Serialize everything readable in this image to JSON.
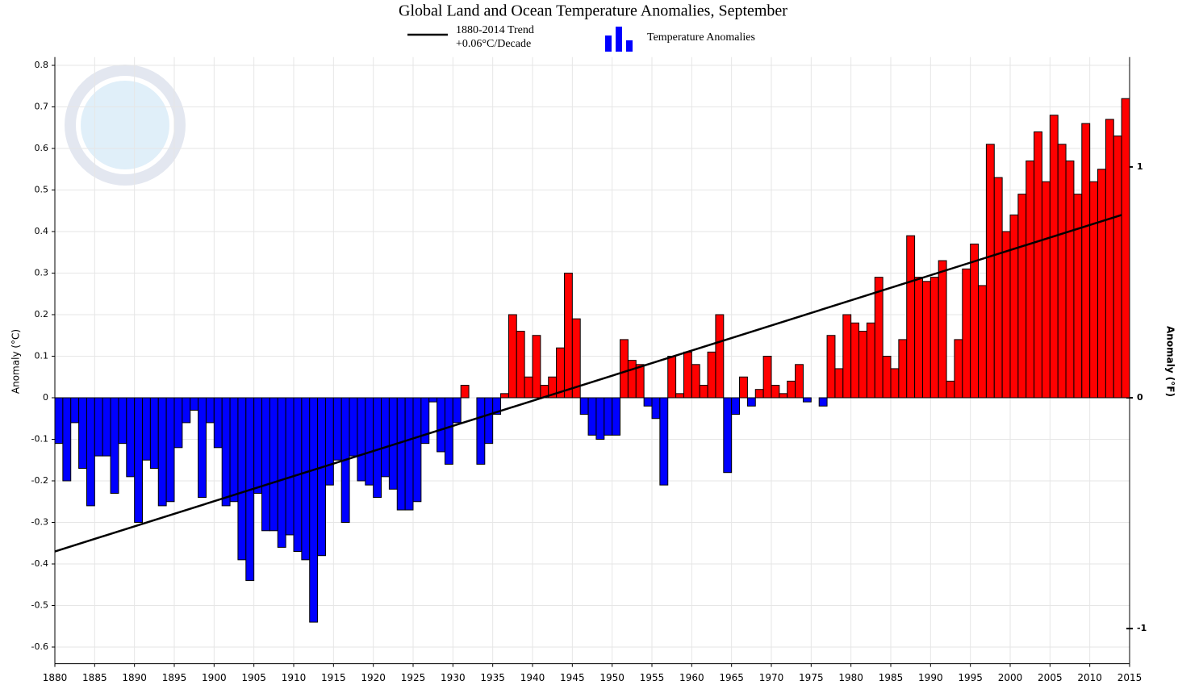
{
  "chart_data": {
    "type": "bar",
    "title": "Global Land and Ocean Temperature Anomalies, September",
    "y_label": "Anomaly (°C)",
    "y2_label": "Anomaly (°F)",
    "legend": {
      "bars": "Temperature Anomalies"
    },
    "colors": {
      "positive": "#ff0000",
      "negative": "#0000ff"
    },
    "x": [
      1880,
      1881,
      1882,
      1883,
      1884,
      1885,
      1886,
      1887,
      1888,
      1889,
      1890,
      1891,
      1892,
      1893,
      1894,
      1895,
      1896,
      1897,
      1898,
      1899,
      1900,
      1901,
      1902,
      1903,
      1904,
      1905,
      1906,
      1907,
      1908,
      1909,
      1910,
      1911,
      1912,
      1913,
      1914,
      1915,
      1916,
      1917,
      1918,
      1919,
      1920,
      1921,
      1922,
      1923,
      1924,
      1925,
      1926,
      1927,
      1928,
      1929,
      1930,
      1931,
      1932,
      1933,
      1934,
      1935,
      1936,
      1937,
      1938,
      1939,
      1940,
      1941,
      1942,
      1943,
      1944,
      1945,
      1946,
      1947,
      1948,
      1949,
      1950,
      1951,
      1952,
      1953,
      1954,
      1955,
      1956,
      1957,
      1958,
      1959,
      1960,
      1961,
      1962,
      1963,
      1964,
      1965,
      1966,
      1967,
      1968,
      1969,
      1970,
      1971,
      1972,
      1973,
      1974,
      1975,
      1976,
      1977,
      1978,
      1979,
      1980,
      1981,
      1982,
      1983,
      1984,
      1985,
      1986,
      1987,
      1988,
      1989,
      1990,
      1991,
      1992,
      1993,
      1994,
      1995,
      1996,
      1997,
      1998,
      1999,
      2000,
      2001,
      2002,
      2003,
      2004,
      2005,
      2006,
      2007,
      2008,
      2009,
      2010,
      2011,
      2012,
      2013,
      2014
    ],
    "values": [
      -0.11,
      -0.2,
      -0.06,
      -0.17,
      -0.26,
      -0.14,
      -0.14,
      -0.23,
      -0.11,
      -0.19,
      -0.3,
      -0.15,
      -0.17,
      -0.26,
      -0.25,
      -0.12,
      -0.06,
      -0.03,
      -0.24,
      -0.06,
      -0.12,
      -0.26,
      -0.25,
      -0.39,
      -0.44,
      -0.23,
      -0.32,
      -0.32,
      -0.36,
      -0.33,
      -0.37,
      -0.39,
      -0.54,
      -0.38,
      -0.21,
      -0.15,
      -0.3,
      -0.14,
      -0.2,
      -0.21,
      -0.24,
      -0.19,
      -0.22,
      -0.27,
      -0.27,
      -0.25,
      -0.11,
      -0.01,
      -0.13,
      -0.16,
      -0.06,
      0.03,
      0.0,
      -0.16,
      -0.11,
      -0.04,
      0.01,
      0.2,
      0.16,
      0.05,
      0.15,
      0.03,
      0.05,
      0.12,
      0.3,
      0.19,
      -0.04,
      -0.09,
      -0.1,
      -0.09,
      -0.09,
      0.14,
      0.09,
      0.08,
      -0.02,
      -0.05,
      -0.21,
      0.1,
      0.01,
      0.11,
      0.08,
      0.03,
      0.11,
      0.2,
      -0.18,
      -0.04,
      0.05,
      -0.02,
      0.02,
      0.1,
      0.03,
      0.01,
      0.04,
      0.08,
      -0.01,
      0.0,
      -0.02,
      0.15,
      0.07,
      0.2,
      0.18,
      0.16,
      0.18,
      0.29,
      0.1,
      0.07,
      0.14,
      0.39,
      0.29,
      0.28,
      0.29,
      0.33,
      0.04,
      0.14,
      0.31,
      0.37,
      0.27,
      0.61,
      0.53,
      0.4,
      0.44,
      0.49,
      0.57,
      0.64,
      0.52,
      0.68,
      0.61,
      0.57,
      0.49,
      0.66,
      0.52,
      0.55,
      0.67,
      0.63,
      0.72
    ],
    "trend": {
      "name": "1880-2014 Trend",
      "note": "+0.06°C/Decade",
      "color": "#000000",
      "x": [
        1880,
        2014
      ],
      "values": [
        -0.37,
        0.44
      ]
    },
    "xlim": [
      1880,
      2015
    ],
    "xticks": [
      1880,
      1885,
      1890,
      1895,
      1900,
      1905,
      1910,
      1915,
      1920,
      1925,
      1930,
      1935,
      1940,
      1945,
      1950,
      1955,
      1960,
      1965,
      1970,
      1975,
      1980,
      1985,
      1990,
      1995,
      2000,
      2005,
      2010,
      2015
    ],
    "ylim": [
      -0.64,
      0.82
    ],
    "yticks": [
      -0.6,
      -0.5,
      -0.4,
      -0.3,
      -0.2,
      -0.1,
      0,
      0.1,
      0.2,
      0.3,
      0.4,
      0.5,
      0.6,
      0.7,
      0.8
    ],
    "y2lim": [
      -1.152,
      1.476
    ],
    "y2ticks": [
      -1,
      0,
      1
    ],
    "grid": true
  }
}
